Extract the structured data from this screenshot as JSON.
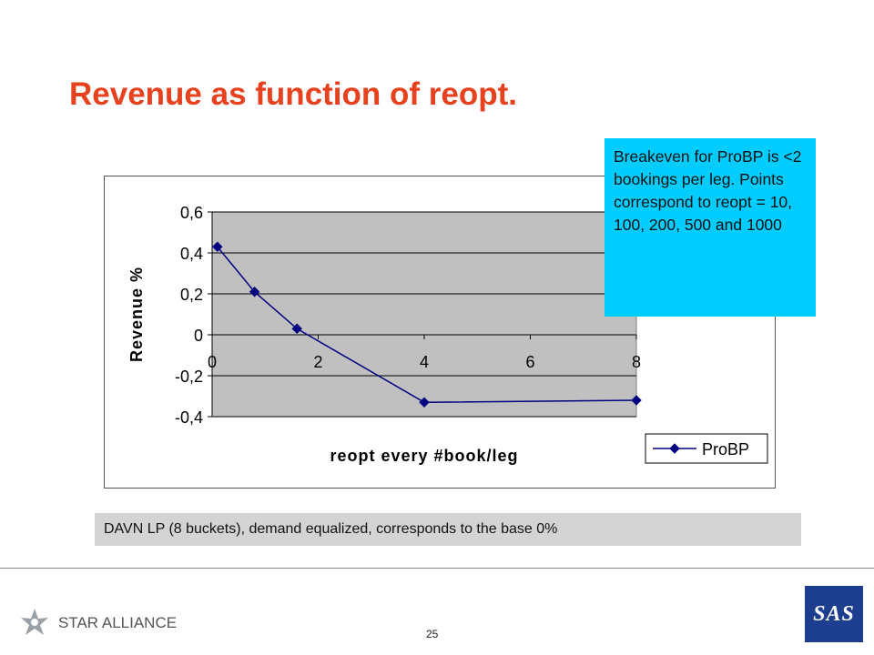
{
  "slide": {
    "title": "Revenue as function of reopt.",
    "callout": "Breakeven for ProBP is <2 bookings per leg. Points correspond to reopt = 10, 100, 200, 500 and 1000",
    "footnote": "DAVN LP (8 buckets), demand equalized, corresponds to the base 0%",
    "page_number": "25",
    "alliance_logo_text": "STAR ALLIANCE",
    "airline_logo_text": "SAS"
  },
  "chart_data": {
    "type": "line",
    "xlabel": "reopt every #book/leg",
    "ylabel": "Revenue %",
    "xlim": [
      0,
      8
    ],
    "ylim": [
      -0.4,
      0.6
    ],
    "x_ticks": [
      "0",
      "2",
      "4",
      "6",
      "8"
    ],
    "x_tick_values": [
      0,
      2,
      4,
      6,
      8
    ],
    "y_ticks": [
      "0,6",
      "0,4",
      "0,2",
      "0",
      "-0,2",
      "-0,4"
    ],
    "y_tick_values": [
      0.6,
      0.4,
      0.2,
      0,
      -0.2,
      -0.4
    ],
    "grid": true,
    "legend_position": "right",
    "plot_background": "#c0c0c0",
    "series": [
      {
        "name": "ProBP",
        "color": "#000080",
        "marker": "diamond",
        "x": [
          0.1,
          0.8,
          1.6,
          4.0,
          8.0
        ],
        "y": [
          0.43,
          0.21,
          0.03,
          -0.33,
          -0.32
        ]
      }
    ]
  }
}
